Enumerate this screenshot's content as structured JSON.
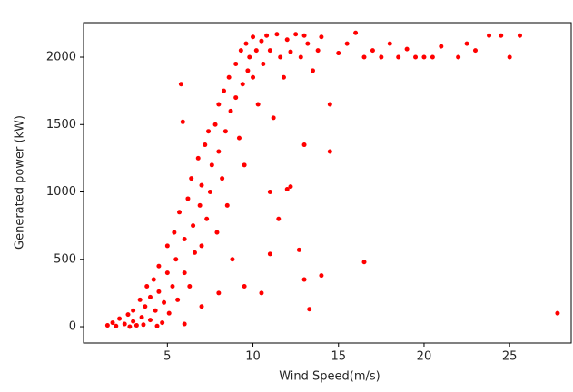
{
  "chart_data": {
    "type": "scatter",
    "x_label": "Wind Speed(m/s)",
    "y_label": "Generated power (kW)",
    "color": "#ff0000",
    "xlim": [
      0.1,
      28.6
    ],
    "ylim": [
      -121,
      2256
    ],
    "xticks": [
      5,
      10,
      15,
      20,
      25
    ],
    "yticks": [
      0,
      500,
      1000,
      1500,
      2000
    ],
    "x": [
      1.5,
      1.8,
      2.0,
      2.2,
      2.5,
      2.7,
      3.0,
      3.0,
      3.2,
      3.4,
      3.5,
      3.7,
      3.8,
      4.0,
      4.0,
      4.2,
      4.3,
      4.5,
      4.5,
      4.7,
      4.8,
      5.0,
      5.0,
      5.1,
      5.3,
      5.4,
      5.5,
      5.6,
      5.7,
      5.8,
      5.9,
      6.0,
      6.0,
      6.2,
      6.3,
      6.4,
      6.5,
      6.6,
      6.8,
      6.9,
      7.0,
      7.0,
      7.2,
      7.3,
      7.4,
      7.5,
      7.6,
      7.8,
      7.9,
      8.0,
      8.0,
      8.2,
      8.3,
      8.4,
      8.5,
      8.6,
      8.7,
      8.8,
      9.0,
      9.0,
      9.2,
      9.3,
      9.4,
      9.5,
      9.6,
      9.7,
      9.8,
      10.0,
      10.0,
      10.2,
      10.3,
      10.5,
      10.6,
      10.8,
      11.0,
      11.2,
      11.4,
      11.6,
      11.8,
      12.0,
      12.2,
      12.5,
      12.8,
      13.0,
      13.0,
      13.2,
      13.5,
      13.8,
      14.0,
      14.5,
      14.5,
      15.0,
      15.5,
      16.0,
      16.5,
      16.5,
      17.0,
      17.5,
      18.0,
      18.5,
      19.0,
      19.5,
      20.0,
      20.5,
      21.0,
      22.0,
      22.5,
      23.0,
      23.8,
      24.5,
      25.0,
      25.6,
      27.8,
      12.0,
      12.2,
      11.5,
      11.0,
      12.7,
      13.3,
      13.0,
      14.0,
      9.5,
      10.5,
      11.0,
      2.8,
      3.6,
      4.4,
      6.0,
      7.0,
      8.0
    ],
    "values": [
      10,
      30,
      5,
      60,
      20,
      90,
      40,
      120,
      10,
      200,
      70,
      150,
      300,
      50,
      220,
      350,
      120,
      260,
      450,
      30,
      180,
      400,
      600,
      100,
      300,
      700,
      500,
      200,
      850,
      1800,
      1520,
      400,
      650,
      950,
      300,
      1100,
      750,
      550,
      1250,
      900,
      1050,
      600,
      1350,
      800,
      1450,
      1000,
      1200,
      1500,
      700,
      1300,
      1650,
      1100,
      1750,
      1450,
      900,
      1850,
      1600,
      500,
      1950,
      1700,
      1400,
      2050,
      1800,
      1200,
      2100,
      1900,
      2000,
      2150,
      1850,
      2050,
      1650,
      2120,
      1950,
      2160,
      2050,
      1550,
      2170,
      2000,
      1850,
      2130,
      2040,
      2170,
      2000,
      2160,
      1350,
      2100,
      1900,
      2050,
      2150,
      1650,
      1300,
      2030,
      2100,
      2180,
      2000,
      480,
      2050,
      2000,
      2100,
      2000,
      2060,
      2000,
      2000,
      2000,
      2080,
      2000,
      2100,
      2050,
      2160,
      2160,
      2000,
      2160,
      100,
      1020,
      1040,
      800,
      1000,
      570,
      130,
      350,
      380,
      300,
      250,
      540,
      0,
      15,
      5,
      20,
      150,
      250
    ]
  }
}
